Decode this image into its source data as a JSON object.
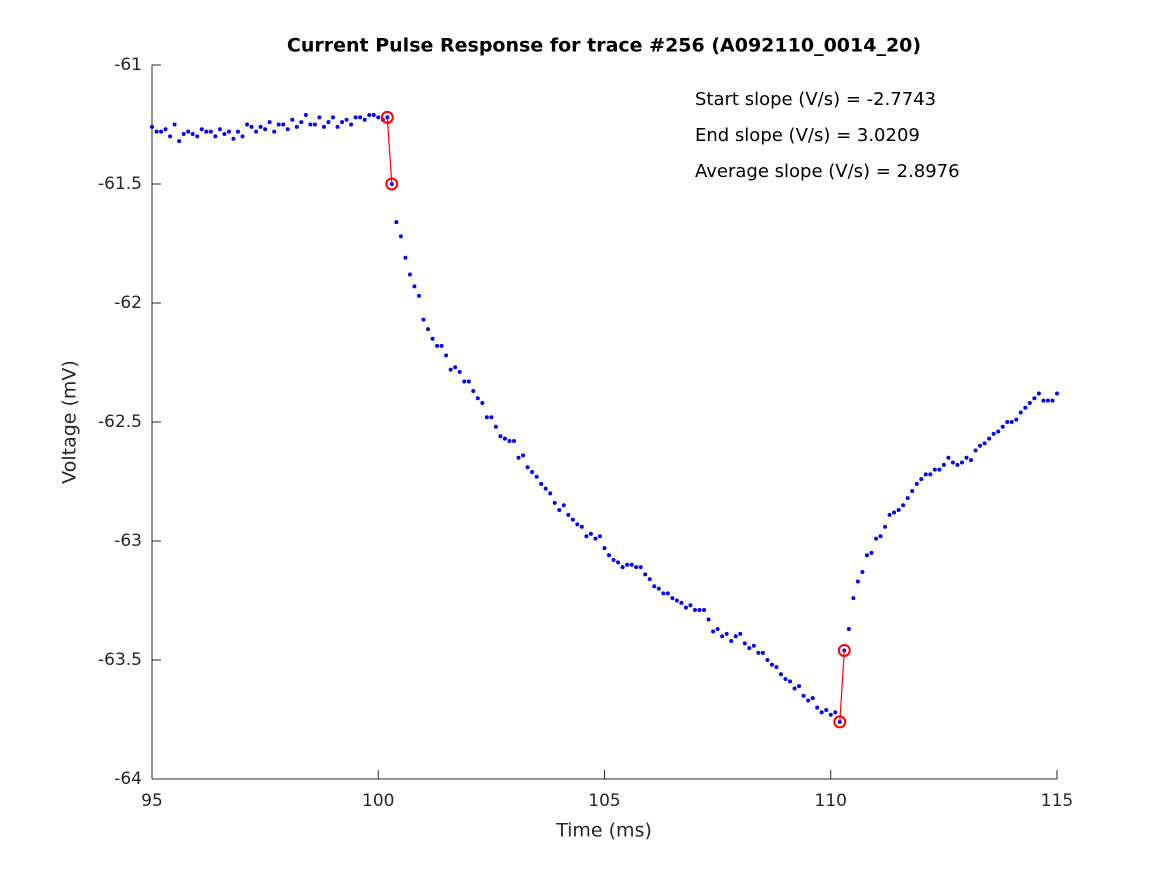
{
  "chart_data": {
    "type": "scatter",
    "title": "Current Pulse Response for trace #256 (A092110_0014_20)",
    "x_label": "Time (ms)",
    "y_label": "Voltage (mV)",
    "annotations": [
      "Start slope (V/s) = -2.7743",
      "End slope (V/s) = 3.0209",
      "Average slope (V/s) = 2.8976"
    ],
    "xlim": [
      95,
      115
    ],
    "xticks": [
      95,
      100,
      105,
      110,
      115
    ],
    "ylim": [
      -64,
      -61
    ],
    "yticks": [
      -64,
      -63.5,
      -63,
      -62.5,
      -62,
      -61.5,
      -61
    ],
    "grid": false,
    "series": [
      {
        "color": "#0000ff",
        "marker": "dot",
        "line": false,
        "x": [
          95.0,
          95.1,
          95.2,
          95.3,
          95.4,
          95.5,
          95.6,
          95.7,
          95.8,
          95.9,
          96.0,
          96.1,
          96.2,
          96.3,
          96.4,
          96.5,
          96.6,
          96.7,
          96.8,
          96.9,
          97.0,
          97.1,
          97.2,
          97.3,
          97.4,
          97.5,
          97.6,
          97.7,
          97.8,
          97.9,
          98.0,
          98.1,
          98.2,
          98.3,
          98.4,
          98.5,
          98.6,
          98.7,
          98.8,
          98.9,
          99.0,
          99.1,
          99.2,
          99.3,
          99.4,
          99.5,
          99.6,
          99.7,
          99.8,
          99.9,
          100.0,
          100.1,
          100.2,
          100.3,
          100.4,
          100.5,
          100.6,
          100.7,
          100.8,
          100.9,
          101.0,
          101.1,
          101.2,
          101.3,
          101.4,
          101.5,
          101.6,
          101.7,
          101.8,
          101.9,
          102.0,
          102.1,
          102.2,
          102.3,
          102.4,
          102.5,
          102.6,
          102.7,
          102.8,
          102.9,
          103.0,
          103.1,
          103.2,
          103.3,
          103.4,
          103.5,
          103.6,
          103.7,
          103.8,
          103.9,
          104.0,
          104.1,
          104.2,
          104.3,
          104.4,
          104.5,
          104.6,
          104.7,
          104.8,
          104.9,
          105.0,
          105.1,
          105.2,
          105.3,
          105.4,
          105.5,
          105.6,
          105.7,
          105.8,
          105.9,
          106.0,
          106.1,
          106.2,
          106.3,
          106.4,
          106.5,
          106.6,
          106.7,
          106.8,
          106.9,
          107.0,
          107.1,
          107.2,
          107.3,
          107.4,
          107.5,
          107.6,
          107.7,
          107.8,
          107.9,
          108.0,
          108.1,
          108.2,
          108.3,
          108.4,
          108.5,
          108.6,
          108.7,
          108.8,
          108.9,
          109.0,
          109.1,
          109.2,
          109.3,
          109.4,
          109.5,
          109.6,
          109.7,
          109.8,
          109.9,
          110.0,
          110.1,
          110.2,
          110.3,
          110.4,
          110.5,
          110.6,
          110.7,
          110.8,
          110.9,
          111.0,
          111.1,
          111.2,
          111.3,
          111.4,
          111.5,
          111.6,
          111.7,
          111.8,
          111.9,
          112.0,
          112.1,
          112.2,
          112.3,
          112.4,
          112.5,
          112.6,
          112.7,
          112.8,
          112.9,
          113.0,
          113.1,
          113.2,
          113.3,
          113.4,
          113.5,
          113.6,
          113.7,
          113.8,
          113.9,
          114.0,
          114.1,
          114.2,
          114.3,
          114.4,
          114.5,
          114.6,
          114.7,
          114.8,
          114.9,
          115.0
        ],
        "values": [
          -61.26,
          -61.28,
          -61.28,
          -61.27,
          -61.3,
          -61.25,
          -61.32,
          -61.29,
          -61.28,
          -61.29,
          -61.3,
          -61.27,
          -61.28,
          -61.28,
          -61.3,
          -61.27,
          -61.29,
          -61.28,
          -61.31,
          -61.28,
          -61.3,
          -61.25,
          -61.26,
          -61.28,
          -61.26,
          -61.27,
          -61.24,
          -61.28,
          -61.25,
          -61.25,
          -61.27,
          -61.23,
          -61.26,
          -61.24,
          -61.21,
          -61.25,
          -61.25,
          -61.22,
          -61.26,
          -61.24,
          -61.22,
          -61.26,
          -61.24,
          -61.23,
          -61.25,
          -61.22,
          -61.22,
          -61.23,
          -61.21,
          -61.21,
          -61.22,
          -61.23,
          -61.22,
          -61.5,
          -61.66,
          -61.72,
          -61.81,
          -61.88,
          -61.93,
          -61.97,
          -62.07,
          -62.11,
          -62.15,
          -62.18,
          -62.18,
          -62.22,
          -62.28,
          -62.27,
          -62.29,
          -62.33,
          -62.33,
          -62.37,
          -62.4,
          -62.42,
          -62.48,
          -62.48,
          -62.52,
          -62.56,
          -62.57,
          -62.58,
          -62.58,
          -62.65,
          -62.64,
          -62.69,
          -62.71,
          -62.73,
          -62.76,
          -62.78,
          -62.8,
          -62.84,
          -62.87,
          -62.85,
          -62.89,
          -62.91,
          -62.93,
          -62.94,
          -62.98,
          -62.97,
          -62.99,
          -62.98,
          -63.03,
          -63.06,
          -63.08,
          -63.09,
          -63.11,
          -63.1,
          -63.1,
          -63.11,
          -63.11,
          -63.14,
          -63.16,
          -63.19,
          -63.2,
          -63.22,
          -63.22,
          -63.24,
          -63.25,
          -63.26,
          -63.28,
          -63.27,
          -63.29,
          -63.29,
          -63.29,
          -63.33,
          -63.38,
          -63.37,
          -63.4,
          -63.39,
          -63.42,
          -63.4,
          -63.39,
          -63.43,
          -63.45,
          -63.44,
          -63.47,
          -63.47,
          -63.5,
          -63.52,
          -63.53,
          -63.56,
          -63.58,
          -63.59,
          -63.62,
          -63.61,
          -63.65,
          -63.67,
          -63.66,
          -63.7,
          -63.72,
          -63.71,
          -63.73,
          -63.72,
          -63.76,
          -63.46,
          -63.37,
          -63.24,
          -63.17,
          -63.13,
          -63.06,
          -63.05,
          -62.99,
          -62.98,
          -62.94,
          -62.89,
          -62.88,
          -62.87,
          -62.85,
          -62.82,
          -62.79,
          -62.76,
          -62.74,
          -62.72,
          -62.72,
          -62.7,
          -62.7,
          -62.68,
          -62.65,
          -62.67,
          -62.68,
          -62.67,
          -62.65,
          -62.66,
          -62.62,
          -62.6,
          -62.59,
          -62.57,
          -62.55,
          -62.54,
          -62.52,
          -62.5,
          -62.5,
          -62.49,
          -62.46,
          -62.44,
          -62.42,
          -62.4,
          -62.38,
          -62.41,
          -62.41,
          -62.41,
          -62.38
        ]
      },
      {
        "color": "#ff0000",
        "marker": "circle",
        "line": true,
        "x": [
          100.2,
          100.3
        ],
        "values": [
          -61.22,
          -61.5
        ]
      },
      {
        "color": "#ff0000",
        "marker": "circle",
        "line": true,
        "x": [
          110.2,
          110.3
        ],
        "values": [
          -63.76,
          -63.46
        ]
      }
    ]
  }
}
